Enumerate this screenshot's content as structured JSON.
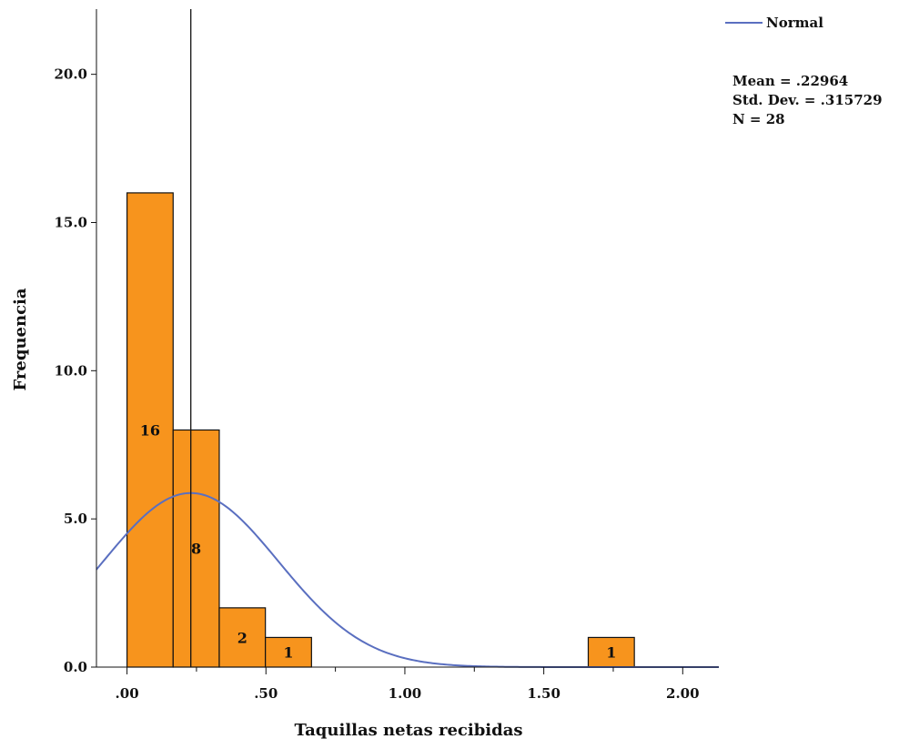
{
  "chart_data": {
    "type": "bar",
    "xlabel": "Taquillas netas recibidas",
    "ylabel": "Frequencia",
    "xlim": [
      -0.11,
      2.13
    ],
    "ylim": [
      0,
      22.2
    ],
    "x_ticks": [
      0,
      0.5,
      1,
      1.5,
      2
    ],
    "x_tick_labels": [
      ".00",
      ".50",
      "1.00",
      "1.50",
      "2.00"
    ],
    "y_ticks": [
      0,
      5,
      10,
      15,
      20
    ],
    "y_tick_labels": [
      "0.0",
      "5.0",
      "10.0",
      "15.0",
      "20.0"
    ],
    "bin_width": 0.166,
    "bars": [
      {
        "start": 0.0,
        "count": 16,
        "label": "16"
      },
      {
        "start": 0.166,
        "count": 8,
        "label": "8"
      },
      {
        "start": 0.332,
        "count": 2,
        "label": "2"
      },
      {
        "start": 0.498,
        "count": 1,
        "label": "1"
      },
      {
        "start": 1.66,
        "count": 1,
        "label": "1"
      }
    ],
    "bar_color": "#f7941d",
    "normal_curve": {
      "name": "Normal",
      "mean": 0.22964,
      "std": 0.315729,
      "n": 28,
      "color": "#5a6fc0"
    },
    "mean_line": 0.22964,
    "grid": false,
    "legend": "top-right"
  },
  "stats": {
    "mean": "Mean = .22964",
    "std": "Std. Dev. = .315729",
    "n": "N = 28"
  }
}
